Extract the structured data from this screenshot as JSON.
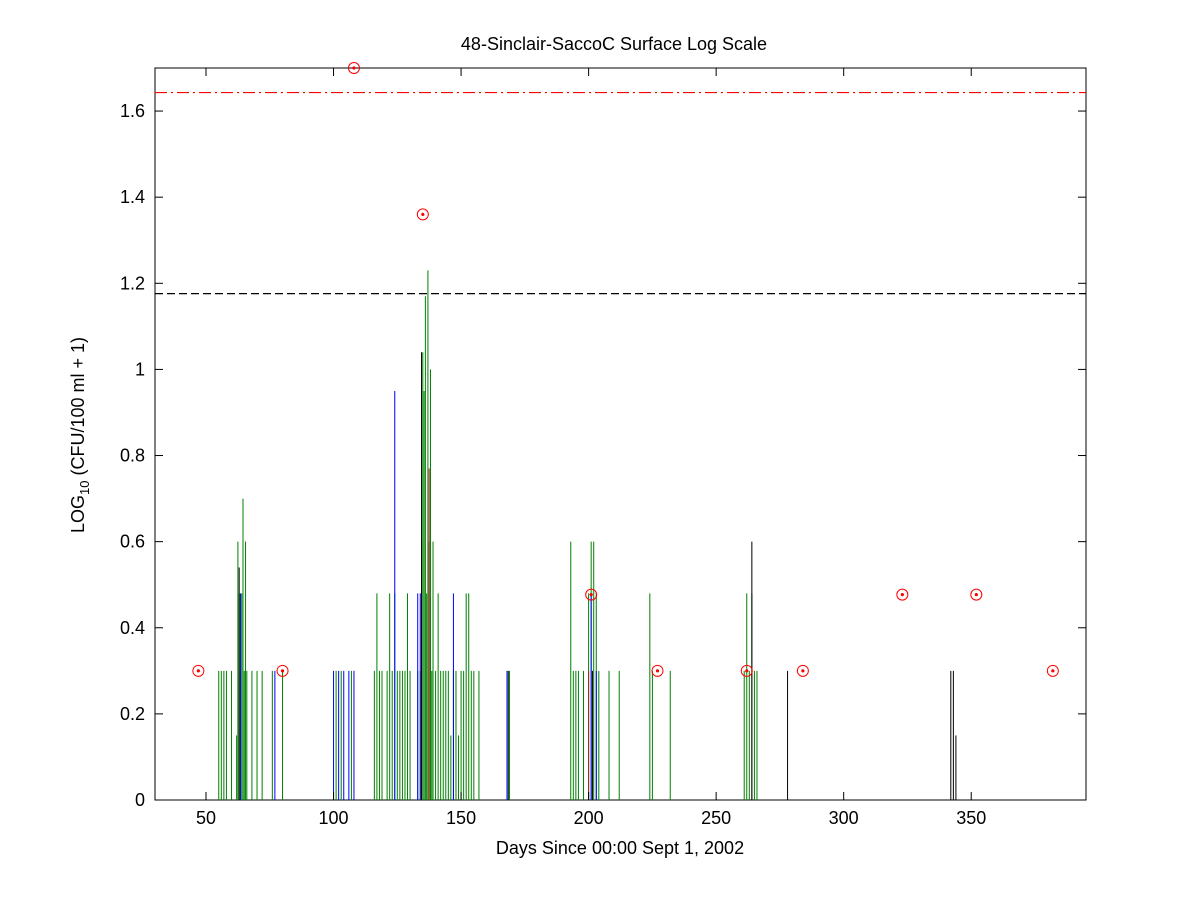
{
  "chart_data": {
    "type": "bar",
    "title": "48-Sinclair-SaccoC Surface Log Scale",
    "xlabel": "Days Since 00:00 Sept 1, 2002",
    "ylabel": {
      "prefix": "LOG",
      "subscript": "10",
      "suffix": " (CFU/100 ml + 1)"
    },
    "xlim": [
      30,
      395
    ],
    "ylim": [
      0,
      1.7
    ],
    "x_ticks": [
      50,
      100,
      150,
      200,
      250,
      300,
      350
    ],
    "y_ticks": [
      0,
      0.2,
      0.4,
      0.6,
      0.8,
      1,
      1.2,
      1.4,
      1.6
    ],
    "y_tick_labels": [
      "0",
      "0.2",
      "0.4",
      "0.6",
      "0.8",
      "1",
      "1.2",
      "1.4",
      "1.6"
    ],
    "grid": false,
    "reference_lines": [
      {
        "y": 1.176,
        "style": "dashed",
        "color": "#000000"
      },
      {
        "y": 1.643,
        "style": "dashdot",
        "color": "#ff0000"
      }
    ],
    "series": [
      {
        "color": "#008000",
        "bars": [
          [
            55,
            0.3
          ],
          [
            56,
            0.3
          ],
          [
            57,
            0.3
          ],
          [
            58,
            0.3
          ],
          [
            60,
            0.3
          ],
          [
            62,
            0.15
          ],
          [
            62.5,
            0.6
          ],
          [
            63,
            0.48
          ],
          [
            63.5,
            0.3
          ],
          [
            64,
            0.48
          ],
          [
            64.5,
            0.7
          ],
          [
            65,
            0.3
          ],
          [
            65.5,
            0.6
          ],
          [
            66,
            0.3
          ],
          [
            68,
            0.3
          ],
          [
            70,
            0.3
          ],
          [
            72,
            0.3
          ],
          [
            76,
            0.3
          ],
          [
            80,
            0.3
          ],
          [
            101,
            0.3
          ],
          [
            103,
            0.3
          ],
          [
            107,
            0.3
          ],
          [
            116,
            0.3
          ],
          [
            117,
            0.48
          ],
          [
            118,
            0.3
          ],
          [
            119,
            0.3
          ],
          [
            121,
            0.3
          ],
          [
            122,
            0.48
          ],
          [
            123,
            0.3
          ],
          [
            124,
            0.48
          ],
          [
            125,
            0.3
          ],
          [
            126,
            0.3
          ],
          [
            127,
            0.3
          ],
          [
            128,
            0.3
          ],
          [
            129,
            0.48
          ],
          [
            130,
            0.3
          ],
          [
            133,
            0.3
          ],
          [
            134,
            0.3
          ],
          [
            134.5,
            0.6
          ],
          [
            135,
            1.04
          ],
          [
            135.5,
            0.95
          ],
          [
            136,
            1.17
          ],
          [
            136.5,
            0.48
          ],
          [
            137,
            1.23
          ],
          [
            137.5,
            0.6
          ],
          [
            138,
            1
          ],
          [
            138.5,
            0.3
          ],
          [
            139,
            0.6
          ],
          [
            140,
            0.3
          ],
          [
            141,
            0.48
          ],
          [
            142,
            0.3
          ],
          [
            143,
            0.3
          ],
          [
            144,
            0.3
          ],
          [
            145,
            0.3
          ],
          [
            146,
            0.15
          ],
          [
            147,
            0.3
          ],
          [
            148,
            0.3
          ],
          [
            149,
            0.15
          ],
          [
            150,
            0.3
          ],
          [
            151,
            0.3
          ],
          [
            152,
            0.48
          ],
          [
            153,
            0.48
          ],
          [
            154,
            0.3
          ],
          [
            155,
            0.3
          ],
          [
            157,
            0.3
          ],
          [
            168,
            0.3
          ],
          [
            169,
            0.3
          ],
          [
            193,
            0.6
          ],
          [
            194,
            0.3
          ],
          [
            195,
            0.3
          ],
          [
            196,
            0.3
          ],
          [
            198,
            0.3
          ],
          [
            200,
            0.48
          ],
          [
            201,
            0.6
          ],
          [
            202,
            0.6
          ],
          [
            203,
            0.48
          ],
          [
            204,
            0.3
          ],
          [
            208,
            0.3
          ],
          [
            212,
            0.3
          ],
          [
            224,
            0.48
          ],
          [
            225,
            0.3
          ],
          [
            232,
            0.3
          ],
          [
            261,
            0.3
          ],
          [
            262,
            0.48
          ],
          [
            263,
            0.3
          ],
          [
            264,
            0.48
          ],
          [
            265,
            0.3
          ],
          [
            266,
            0.3
          ]
        ]
      },
      {
        "color": "#0000ff",
        "bars": [
          [
            63.5,
            0.48
          ],
          [
            77,
            0.3
          ],
          [
            100,
            0.3
          ],
          [
            102,
            0.3
          ],
          [
            104,
            0.3
          ],
          [
            106,
            0.3
          ],
          [
            108,
            0.3
          ],
          [
            124,
            0.95
          ],
          [
            133,
            0.48
          ],
          [
            134,
            0.48
          ],
          [
            147,
            0.48
          ],
          [
            168,
            0.3
          ],
          [
            201,
            0.48
          ],
          [
            203,
            0.3
          ]
        ]
      },
      {
        "color": "#000000",
        "bars": [
          [
            63,
            0.54
          ],
          [
            134.5,
            1.04
          ],
          [
            168.5,
            0.3
          ],
          [
            201.5,
            0.3
          ],
          [
            264,
            0.6
          ],
          [
            278,
            0.3
          ],
          [
            342,
            0.3
          ],
          [
            343,
            0.3
          ],
          [
            344,
            0.15
          ]
        ]
      },
      {
        "color": "#b22222",
        "bars": [
          [
            137.5,
            0.77
          ],
          [
            200,
            0.3
          ]
        ]
      }
    ],
    "markers": {
      "style": "circled-dot",
      "color": "#ff0000",
      "points": [
        [
          47,
          0.3
        ],
        [
          80,
          0.3
        ],
        [
          108,
          1.7
        ],
        [
          135,
          1.36
        ],
        [
          201,
          0.477
        ],
        [
          227,
          0.3
        ],
        [
          262,
          0.3
        ],
        [
          284,
          0.3
        ],
        [
          323,
          0.477
        ],
        [
          352,
          0.477
        ],
        [
          382,
          0.3
        ]
      ]
    }
  }
}
